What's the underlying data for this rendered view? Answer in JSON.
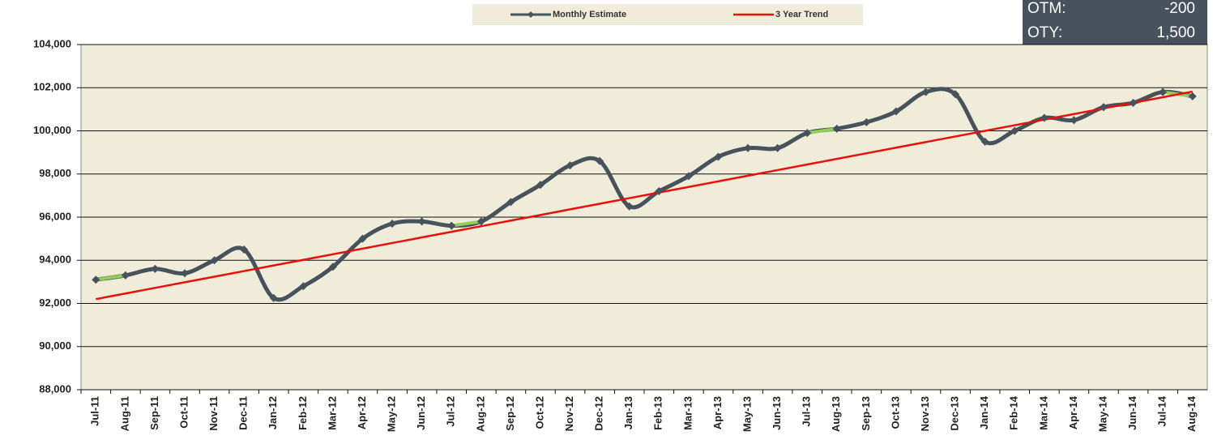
{
  "chart_data": {
    "type": "line",
    "categories": [
      "Jul-11",
      "Aug-11",
      "Sep-11",
      "Oct-11",
      "Nov-11",
      "Dec-11",
      "Jan-12",
      "Feb-12",
      "Mar-12",
      "Apr-12",
      "May-12",
      "Jun-12",
      "Jul-12",
      "Aug-12",
      "Sep-12",
      "Oct-12",
      "Nov-12",
      "Dec-12",
      "Jan-13",
      "Feb-13",
      "Mar-13",
      "Apr-13",
      "May-13",
      "Jun-13",
      "Jul-13",
      "Aug-13",
      "Sep-13",
      "Oct-13",
      "Nov-13",
      "Dec-13",
      "Jan-14",
      "Feb-14",
      "Mar-14",
      "Apr-14",
      "May-14",
      "Jun-14",
      "Jul-14",
      "Aug-14"
    ],
    "series": [
      {
        "name": "Monthly Estimate",
        "color": "#48525c",
        "values": [
          93100,
          93300,
          93600,
          93400,
          94000,
          94500,
          92250,
          92800,
          93700,
          95000,
          95700,
          95800,
          95600,
          95800,
          96700,
          97500,
          98400,
          98600,
          96500,
          97200,
          97900,
          98800,
          99200,
          99200,
          99900,
          100100,
          100400,
          100900,
          101800,
          101700,
          99500,
          100000,
          100600,
          100500,
          101100,
          101300,
          101800,
          101600
        ]
      },
      {
        "name": "3 Year Trend",
        "color": "#e8100c",
        "values": [
          92200,
          92460,
          92720,
          92980,
          93240,
          93500,
          93760,
          94020,
          94280,
          94540,
          94800,
          95060,
          95320,
          95580,
          95840,
          96100,
          96360,
          96620,
          96880,
          97140,
          97400,
          97660,
          97920,
          98180,
          98440,
          98700,
          98960,
          99220,
          99480,
          99740,
          100000,
          100260,
          100520,
          100780,
          101040,
          101300,
          101560,
          101820
        ]
      }
    ],
    "ylim": [
      88000,
      104000
    ],
    "yticks": [
      {
        "value": 88000,
        "label": "88,000"
      },
      {
        "value": 90000,
        "label": "90,000"
      },
      {
        "value": 92000,
        "label": "92,000"
      },
      {
        "value": 94000,
        "label": "94,000"
      },
      {
        "value": 96000,
        "label": "96,000"
      },
      {
        "value": 98000,
        "label": "98,000"
      },
      {
        "value": 100000,
        "label": "100,000"
      },
      {
        "value": 102000,
        "label": "102,000"
      },
      {
        "value": 104000,
        "label": "104,000"
      }
    ],
    "grid": true,
    "legend": "top",
    "annotations": [
      {
        "label": "OTM:",
        "value": "-200"
      },
      {
        "label": "OTY:",
        "value": "1,500"
      }
    ]
  }
}
